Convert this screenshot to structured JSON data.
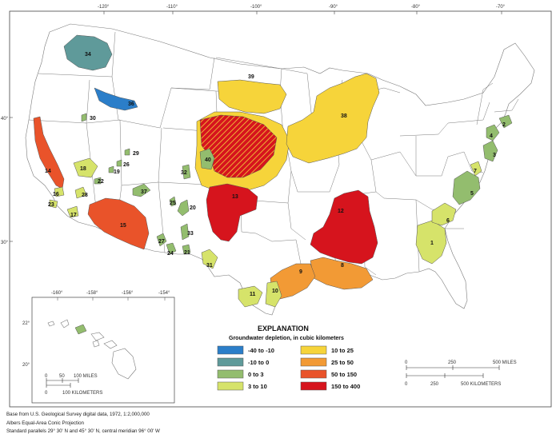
{
  "map": {
    "longitude_ticks": [
      "-120°",
      "-110°",
      "-100°",
      "-90°",
      "-80°",
      "-70°"
    ],
    "latitude_ticks": [
      "40°",
      "30°"
    ],
    "hawaii_longitude_ticks": [
      "-160°",
      "-158°",
      "-156°",
      "-154°"
    ],
    "hawaii_latitude_ticks": [
      "22°",
      "20°"
    ],
    "region_numbers": [
      "1",
      "2",
      "3",
      "4",
      "5",
      "6",
      "7",
      "8",
      "9",
      "10",
      "11",
      "12",
      "13",
      "14",
      "15",
      "16",
      "17",
      "18",
      "19",
      "20",
      "21",
      "22",
      "23",
      "24",
      "25",
      "26",
      "27",
      "28",
      "29",
      "30",
      "31",
      "32",
      "33",
      "34",
      "35",
      "36",
      "37",
      "38",
      "39",
      "40"
    ]
  },
  "colors": {
    "n40_n10": "#2b7ec9",
    "n10_0": "#5f9a9a",
    "c0_3": "#93bd6e",
    "c3_10": "#d6e36a",
    "c10_25": "#f6d43a",
    "c25_50": "#f29a35",
    "c50_150": "#e9532a",
    "c150_400": "#d6141d"
  },
  "legend": {
    "title": "EXPLANATION",
    "subtitle": "Groundwater depletion, in cubic kilometers",
    "items": [
      {
        "label": "-40 to -10",
        "color": "#2b7ec9"
      },
      {
        "label": "-10 to 0",
        "color": "#5f9a9a"
      },
      {
        "label": "0 to 3",
        "color": "#93bd6e"
      },
      {
        "label": "3 to 10",
        "color": "#d6e36a"
      },
      {
        "label": "10 to 25",
        "color": "#f6d43a"
      },
      {
        "label": "25 to 50",
        "color": "#f29a35"
      },
      {
        "label": "50 to 150",
        "color": "#e9532a"
      },
      {
        "label": "150 to 400",
        "color": "#d6141d"
      }
    ]
  },
  "inset_scale": {
    "miles_ticks": [
      "0",
      "50",
      "100 MILES"
    ],
    "km_ticks": [
      "0",
      "100 KILOMETERS"
    ]
  },
  "scale": {
    "miles_ticks": [
      "0",
      "250",
      "500 MILES"
    ],
    "km_ticks": [
      "0",
      "250",
      "500 KILOMETERS"
    ]
  },
  "credits": {
    "line1": "Base from U.S. Geological Survey digital data, 1972, 1:2,000,000",
    "line2": "Albers Equal-Area Conic Projection",
    "line3": "Standard parallels 29° 30' N and 45° 30' N, central meridian 96° 00' W"
  }
}
